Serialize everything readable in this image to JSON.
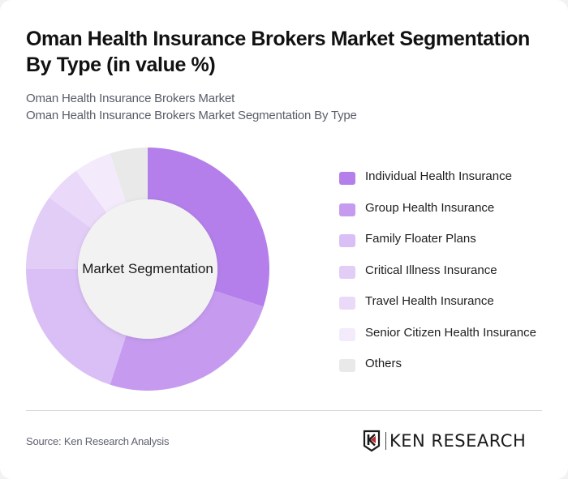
{
  "header": {
    "title": "Oman Health Insurance Brokers Market Segmentation By Type (in value %)",
    "subtitle_1": "Oman Health Insurance Brokers Market",
    "subtitle_2": "Oman Health Insurance Brokers Market Segmentation By Type"
  },
  "chart": {
    "center_label": "Market Segmentation"
  },
  "legend": {
    "items": [
      {
        "label": "Individual Health Insurance",
        "color": "#b47feb"
      },
      {
        "label": "Group Health Insurance",
        "color": "#c69bef"
      },
      {
        "label": "Family Floater Plans",
        "color": "#d9bff5"
      },
      {
        "label": "Critical Illness Insurance",
        "color": "#e2cdf7"
      },
      {
        "label": "Travel Health Insurance",
        "color": "#ead9f9"
      },
      {
        "label": "Senior Citizen Health Insurance",
        "color": "#f3ebfc"
      },
      {
        "label": "Others",
        "color": "#e9e9e9"
      }
    ]
  },
  "footer": {
    "source": "Source: Ken Research Analysis",
    "logo_text": "KEN RESEARCH"
  },
  "chart_data": {
    "type": "pie",
    "title": "Oman Health Insurance Brokers Market Segmentation By Type (in value %)",
    "subtitle": "Oman Health Insurance Brokers Market Segmentation By Type",
    "center_label": "Market Segmentation",
    "donut": true,
    "categories": [
      "Individual Health Insurance",
      "Group Health Insurance",
      "Family Floater Plans",
      "Critical Illness Insurance",
      "Travel Health Insurance",
      "Senior Citizen Health Insurance",
      "Others"
    ],
    "values": [
      30,
      25,
      20,
      10,
      5,
      5,
      5
    ],
    "colors": [
      "#b47feb",
      "#c69bef",
      "#d9bff5",
      "#e2cdf7",
      "#ead9f9",
      "#f3ebfc",
      "#e9e9e9"
    ],
    "unit": "%",
    "legend_position": "right",
    "start_angle": "12 o'clock, clockwise"
  }
}
